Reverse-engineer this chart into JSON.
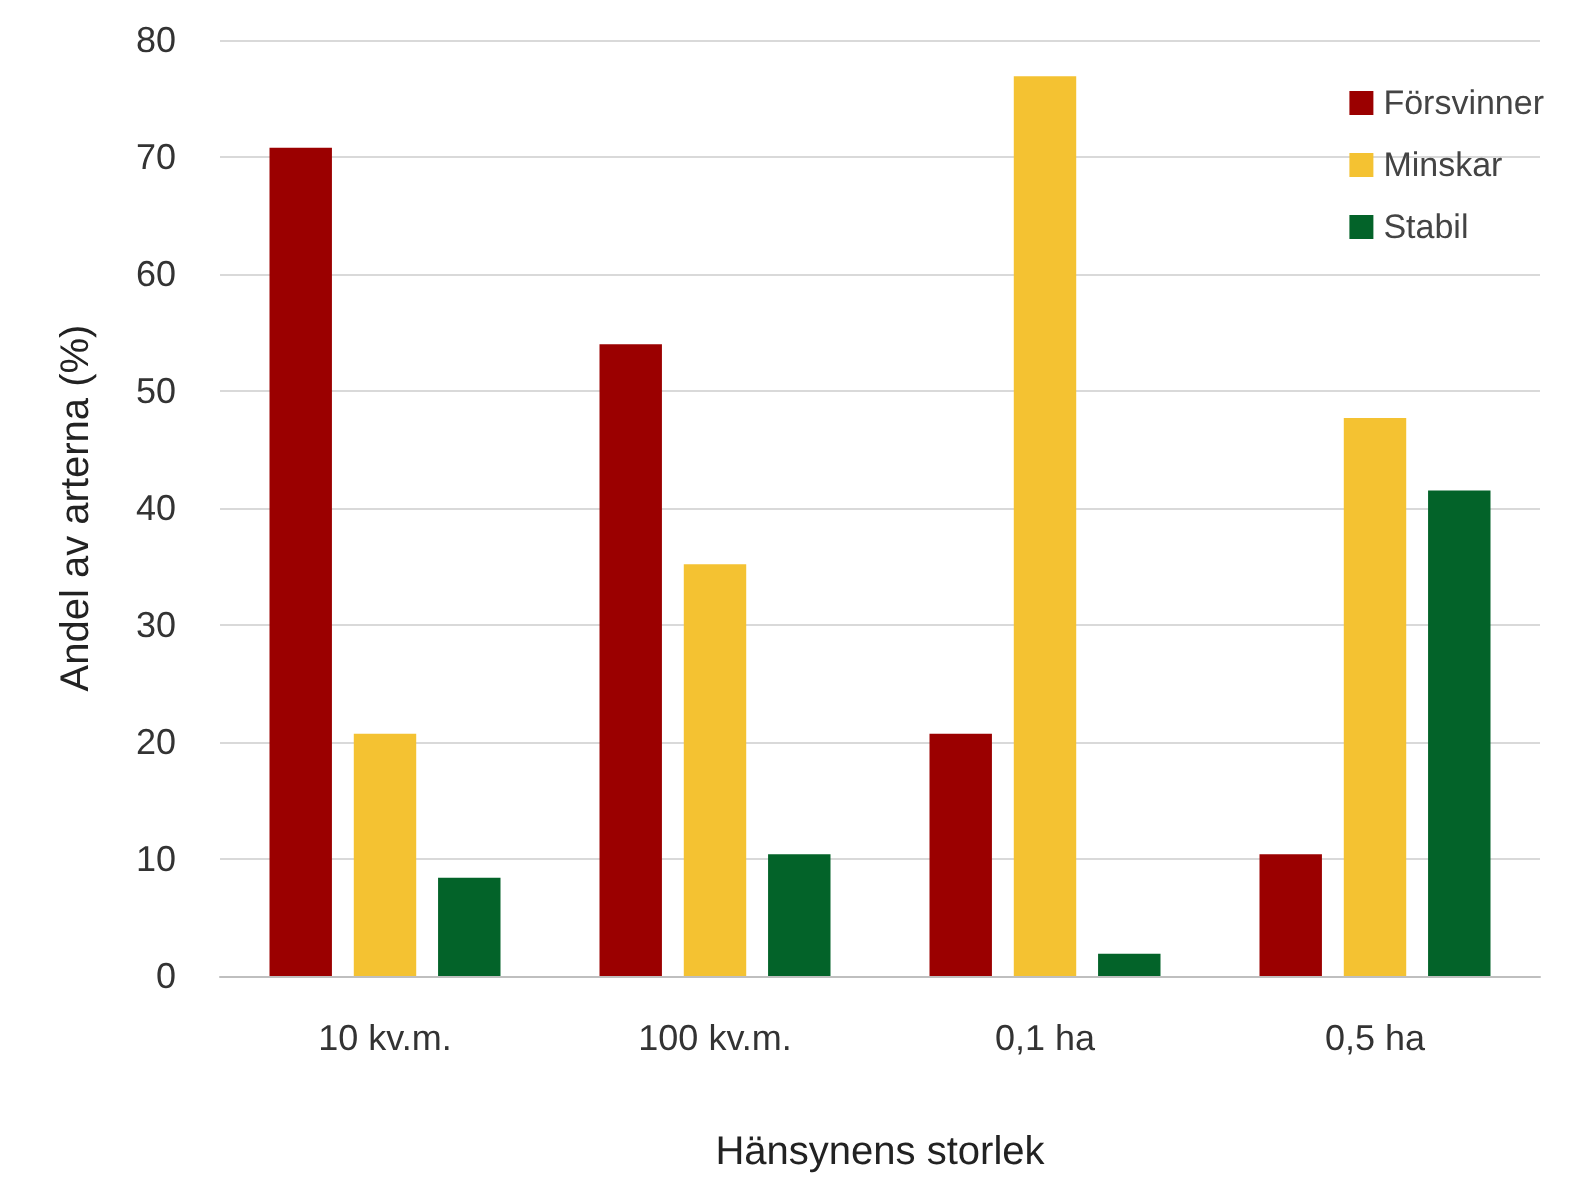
{
  "chart_data": {
    "type": "bar",
    "xlabel": "Hänsynens storlek",
    "ylabel": "Andel av arterna (%)",
    "categories": [
      "10 kv.m.",
      "100 kv.m.",
      "0,1 ha",
      "0,5 ha"
    ],
    "series": [
      {
        "name": "Försvinner",
        "color": "#9b0000",
        "values": [
          70.8,
          54.0,
          20.7,
          10.4
        ]
      },
      {
        "name": "Minskar",
        "color": "#f4c232",
        "values": [
          20.7,
          35.2,
          76.9,
          47.7
        ]
      },
      {
        "name": "Stabil",
        "color": "#036329",
        "values": [
          8.4,
          10.4,
          1.9,
          41.5
        ]
      }
    ],
    "ylim": [
      0,
      80
    ],
    "yticks": [
      0,
      10,
      20,
      30,
      40,
      50,
      60,
      70,
      80
    ],
    "grid": "y",
    "legend": "top right"
  }
}
